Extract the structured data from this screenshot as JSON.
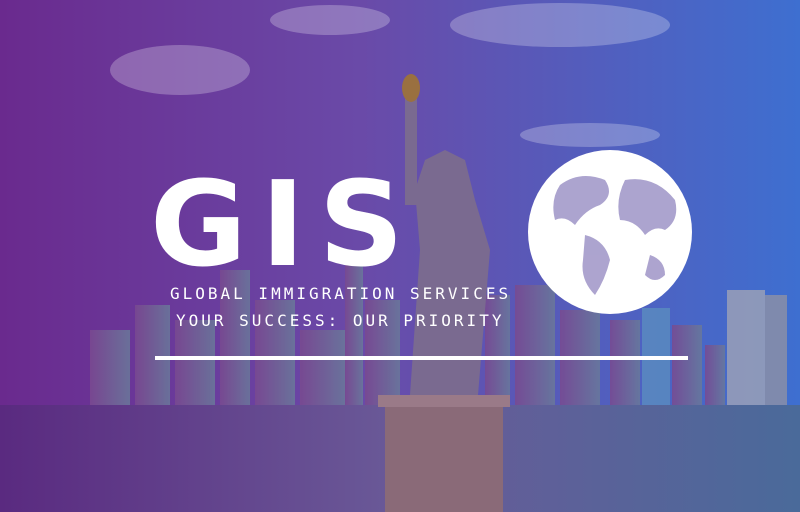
{
  "logo": {
    "initials": "GIS",
    "name": "GLOBAL IMMIGRATION SERVICES",
    "tagline": "YOUR SUCCESS: OUR PRIORITY"
  }
}
